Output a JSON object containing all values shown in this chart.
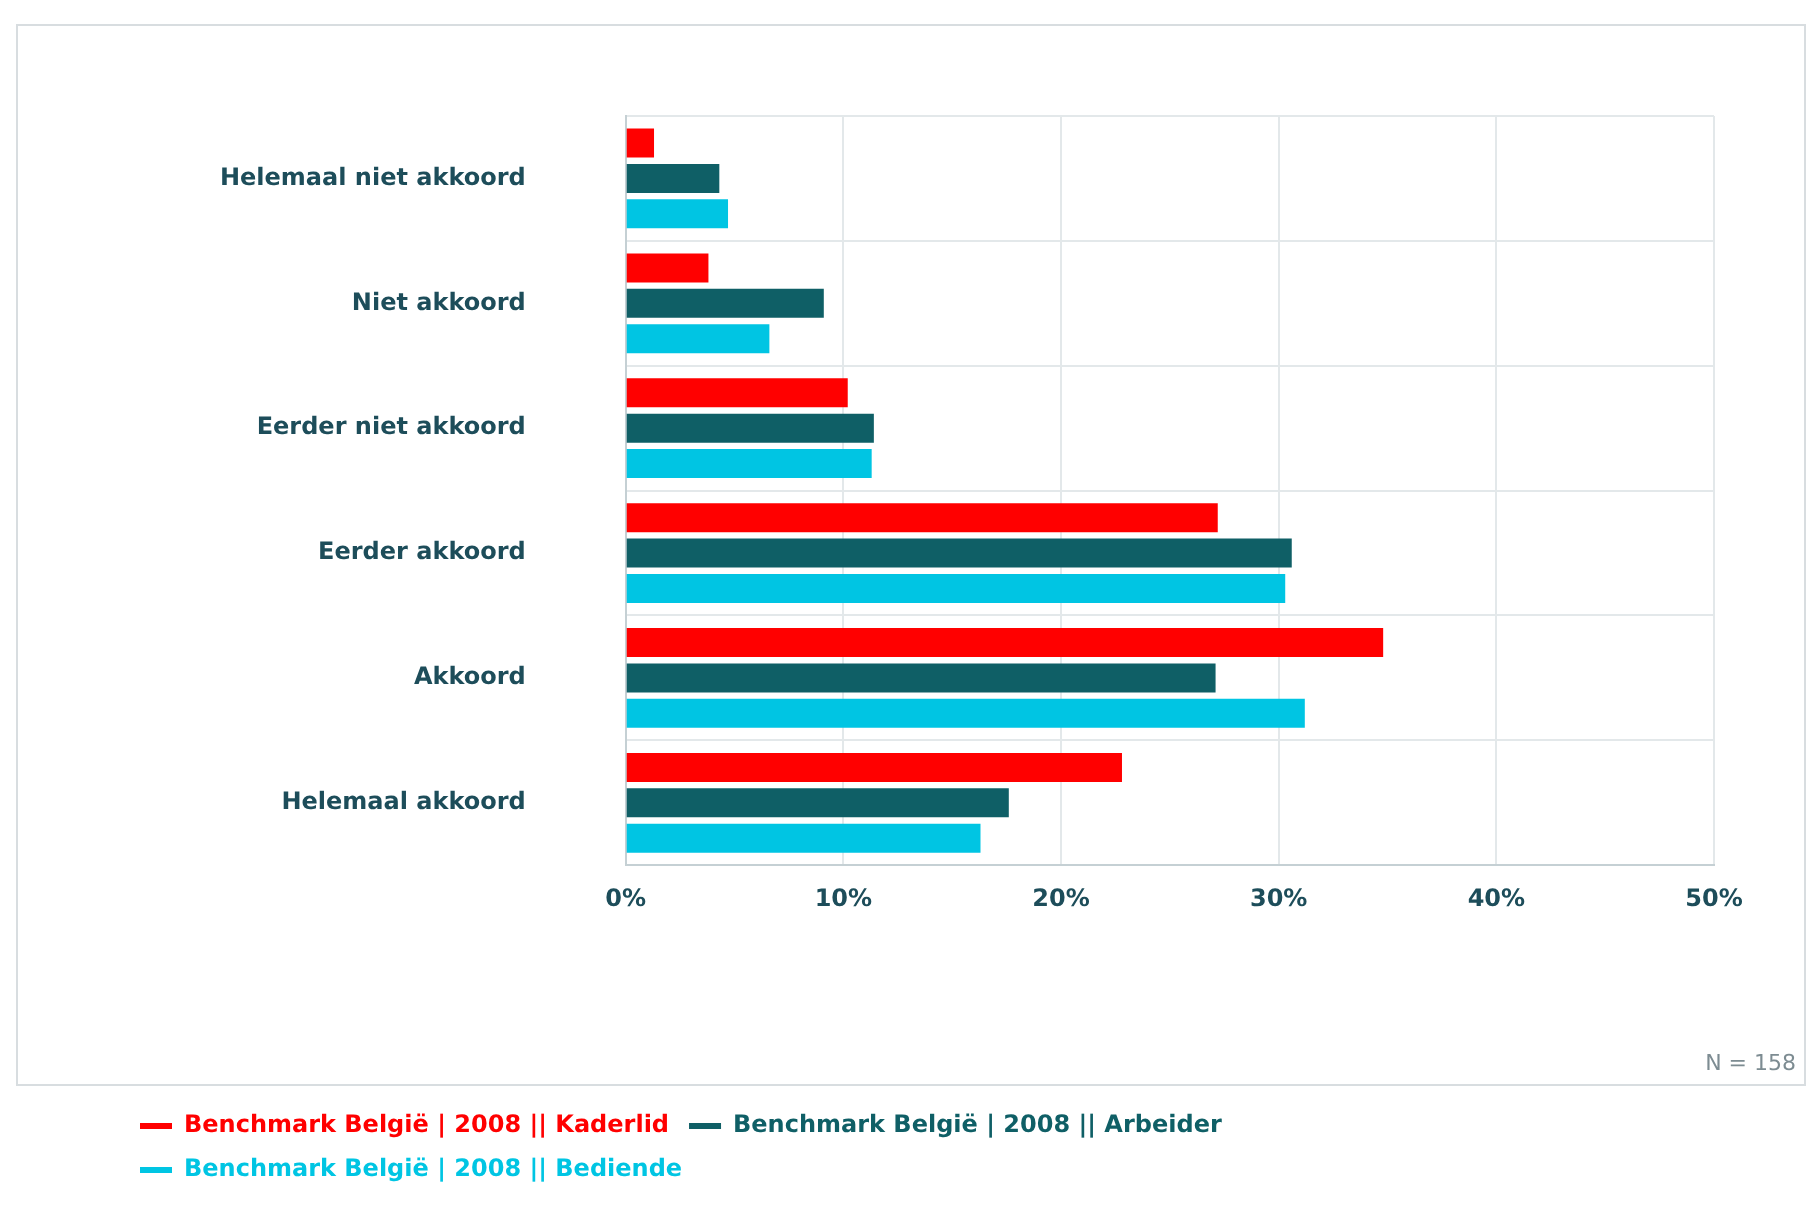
{
  "chart_data": {
    "type": "bar",
    "orientation": "horizontal",
    "categories": [
      "Helemaal niet akkoord",
      "Niet akkoord",
      "Eerder niet akkoord",
      "Eerder akkoord",
      "Akkoord",
      "Helemaal akkoord"
    ],
    "series": [
      {
        "name": "Benchmark België | 2008 || Kaderlid",
        "color": "#ff0000",
        "values": [
          1.3,
          3.8,
          10.2,
          27.2,
          34.8,
          22.8
        ]
      },
      {
        "name": "Benchmark België | 2008 || Arbeider",
        "color": "#0f5f66",
        "values": [
          4.3,
          9.1,
          11.4,
          30.6,
          27.1,
          17.6
        ]
      },
      {
        "name": "Benchmark België | 2008 || Bediende",
        "color": "#00c5e3",
        "values": [
          4.7,
          6.6,
          11.3,
          30.3,
          31.2,
          16.3
        ]
      }
    ],
    "xlim": [
      0,
      50
    ],
    "xticks": [
      {
        "value": 0,
        "label": "0%"
      },
      {
        "value": 10,
        "label": "10%"
      },
      {
        "value": 20,
        "label": "20%"
      },
      {
        "value": 30,
        "label": "30%"
      },
      {
        "value": 40,
        "label": "40%"
      },
      {
        "value": 50,
        "label": "50%"
      }
    ],
    "grid": true,
    "legend": "bottom left",
    "annotations": [
      "N = 158"
    ]
  }
}
